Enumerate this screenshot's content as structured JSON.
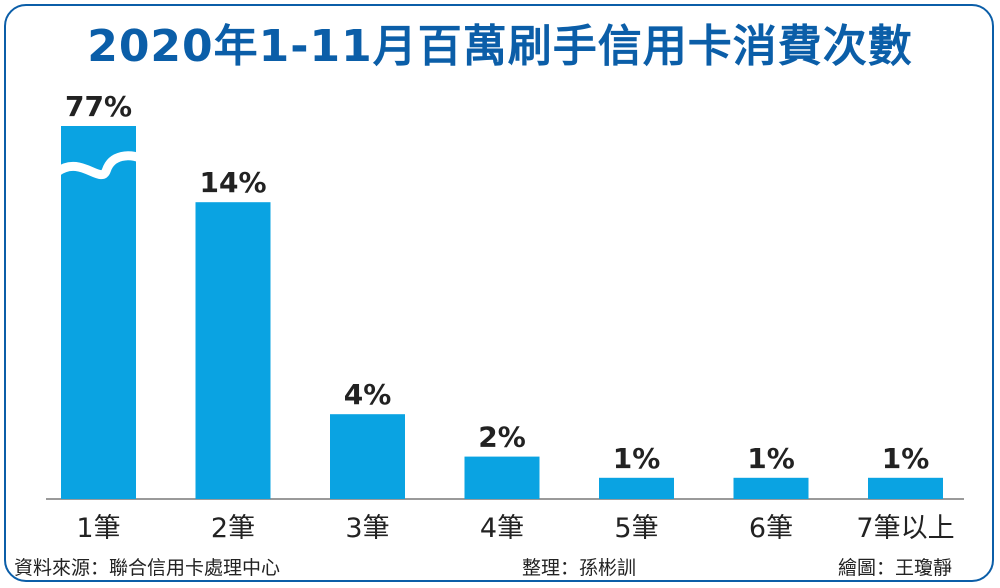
{
  "chart_data": {
    "type": "bar",
    "title": "2020年1-11月百萬刷手信用卡消費次數",
    "categories": [
      "1筆",
      "2筆",
      "3筆",
      "4筆",
      "5筆",
      "6筆",
      "7筆以上"
    ],
    "values": [
      77,
      14,
      4,
      2,
      1,
      1,
      1
    ],
    "value_suffix": "%",
    "axis_break_on_first_bar": true,
    "xlabel": "",
    "ylabel": "",
    "grid": false,
    "bar_color": "#0aa3e2"
  },
  "footer": {
    "source": "資料來源：聯合信用卡處理中心",
    "editor": "整理：孫彬訓",
    "artist": "繪圖：王瓊靜"
  },
  "colors": {
    "title": "#0b5ea8",
    "frame": "#0b5ea8",
    "bar": "#0aa3e2"
  }
}
